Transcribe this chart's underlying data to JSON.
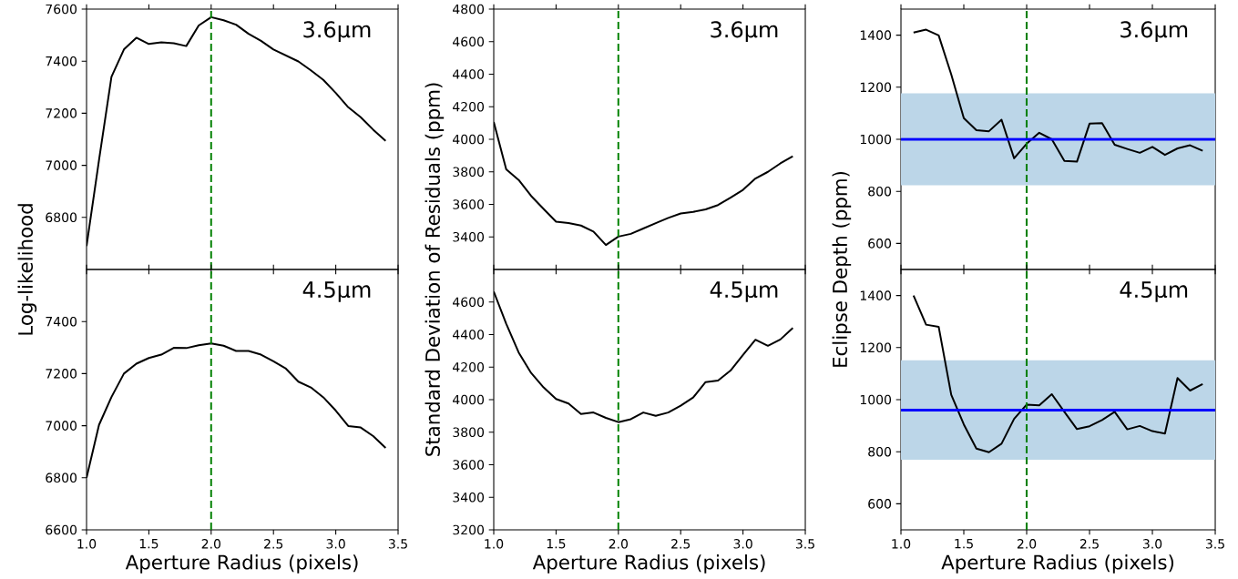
{
  "chart_data": [
    {
      "type": "line",
      "ylabel": "Log-likelihood",
      "tick_labels": "y",
      "x": [
        1.0,
        1.1,
        1.2,
        1.3,
        1.4,
        1.5,
        1.6,
        1.7,
        1.8,
        1.9,
        2.0,
        2.1,
        2.2,
        2.3,
        2.4,
        2.5,
        2.6,
        2.7,
        2.8,
        2.9,
        3.0,
        3.1,
        3.2,
        3.3,
        3.4
      ],
      "series": [
        {
          "color": "#000000",
          "values": [
            6690,
            7020,
            7340,
            7445,
            7490,
            7466,
            7472,
            7469,
            7458,
            7537,
            7569,
            7557,
            7540,
            7505,
            7478,
            7445,
            7422,
            7399,
            7365,
            7328,
            7278,
            7223,
            7185,
            7137,
            7094
          ]
        }
      ],
      "xlim": [
        1.0,
        3.5
      ],
      "xticks": [
        {
          "value": 1.0,
          "label": null
        },
        {
          "value": 1.5,
          "label": null
        },
        {
          "value": 2.0,
          "label": null
        },
        {
          "value": 2.5,
          "label": null
        },
        {
          "value": 3.0,
          "label": null
        },
        {
          "value": 3.5,
          "label": null
        }
      ],
      "ylim": [
        6600,
        7600
      ],
      "yticks": [
        6800,
        7000,
        7200,
        7400,
        7600
      ],
      "ref_lines": [
        {
          "axis": "x",
          "value": 2.0,
          "color": "#008000",
          "line_style": "dashed"
        }
      ],
      "annotations": [
        "3.6μm"
      ]
    },
    {
      "type": "line",
      "ylabel": "Standard Deviation of Residuals (ppm)",
      "tick_labels": "y",
      "x": [
        1.0,
        1.1,
        1.2,
        1.3,
        1.4,
        1.5,
        1.6,
        1.7,
        1.8,
        1.9,
        2.0,
        2.1,
        2.2,
        2.3,
        2.4,
        2.5,
        2.6,
        2.7,
        2.8,
        2.9,
        3.0,
        3.1,
        3.2,
        3.3,
        3.4
      ],
      "series": [
        {
          "color": "#000000",
          "values": [
            4106,
            3815,
            3750,
            3652,
            3572,
            3494,
            3485,
            3470,
            3433,
            3350,
            3402,
            3419,
            3452,
            3485,
            3517,
            3544,
            3554,
            3569,
            3596,
            3641,
            3689,
            3759,
            3800,
            3852,
            3896
          ]
        }
      ],
      "xlim": [
        1.0,
        3.5
      ],
      "xticks": [
        {
          "value": 1.0,
          "label": null
        },
        {
          "value": 1.5,
          "label": null
        },
        {
          "value": 2.0,
          "label": null
        },
        {
          "value": 2.5,
          "label": null
        },
        {
          "value": 3.0,
          "label": null
        },
        {
          "value": 3.5,
          "label": null
        }
      ],
      "ylim": [
        3200,
        4800
      ],
      "yticks": [
        3400,
        3600,
        3800,
        4000,
        4200,
        4400,
        4600,
        4800
      ],
      "ref_lines": [
        {
          "axis": "x",
          "value": 2.0,
          "color": "#008000",
          "line_style": "dashed"
        }
      ],
      "annotations": [
        "3.6μm"
      ]
    },
    {
      "type": "line",
      "ylabel": "Eclipse Depth (ppm)",
      "tick_labels": "y",
      "x": [
        1.1,
        1.2,
        1.3,
        1.4,
        1.5,
        1.6,
        1.7,
        1.8,
        1.9,
        2.0,
        2.1,
        2.2,
        2.3,
        2.4,
        2.5,
        2.6,
        2.7,
        2.8,
        2.9,
        3.0,
        3.1,
        3.2,
        3.3,
        3.4
      ],
      "series": [
        {
          "color": "#000000",
          "values": [
            1410,
            1421,
            1399,
            1249,
            1081,
            1035,
            1031,
            1075,
            927,
            983,
            1025,
            1000,
            917,
            914,
            1060,
            1062,
            979,
            963,
            948,
            971,
            940,
            965,
            977,
            956
          ]
        }
      ],
      "xlim": [
        1.0,
        3.5
      ],
      "xticks": [
        {
          "value": 1.0,
          "label": null
        },
        {
          "value": 1.5,
          "label": null
        },
        {
          "value": 2.0,
          "label": null
        },
        {
          "value": 2.5,
          "label": null
        },
        {
          "value": 3.0,
          "label": null
        },
        {
          "value": 3.5,
          "label": null
        }
      ],
      "ylim": [
        500,
        1500
      ],
      "yticks": [
        600,
        800,
        1000,
        1200,
        1400
      ],
      "bands": [
        {
          "axis": "y",
          "from": 823,
          "to": 1177,
          "color": "#bcd6e8"
        }
      ],
      "ref_lines": [
        {
          "axis": "x",
          "value": 2.0,
          "color": "#008000",
          "line_style": "dashed"
        },
        {
          "axis": "y",
          "value": 1000,
          "color": "#0000ff",
          "line_style": "solid"
        }
      ],
      "annotations": [
        "3.6μm"
      ]
    },
    {
      "type": "line",
      "xlabel": "Aperture Radius (pixels)",
      "x": [
        1.0,
        1.1,
        1.2,
        1.3,
        1.4,
        1.5,
        1.6,
        1.7,
        1.8,
        1.9,
        2.0,
        2.1,
        2.2,
        2.3,
        2.4,
        2.5,
        2.6,
        2.7,
        2.8,
        2.9,
        3.0,
        3.1,
        3.2,
        3.3,
        3.4
      ],
      "series": [
        {
          "color": "#000000",
          "values": [
            6800,
            7003,
            7110,
            7200,
            7238,
            7260,
            7273,
            7299,
            7298,
            7309,
            7316,
            7307,
            7287,
            7287,
            7273,
            7247,
            7219,
            7169,
            7147,
            7109,
            7058,
            6999,
            6993,
            6960,
            6915
          ]
        }
      ],
      "xlim": [
        1.0,
        3.5
      ],
      "xticks": [
        {
          "value": 1.0,
          "label": "1.0"
        },
        {
          "value": 1.5,
          "label": "1.5"
        },
        {
          "value": 2.0,
          "label": "2.0"
        },
        {
          "value": 2.5,
          "label": "2.5"
        },
        {
          "value": 3.0,
          "label": "3.0"
        },
        {
          "value": 3.5,
          "label": "3.5"
        }
      ],
      "ylim": [
        6600,
        7600
      ],
      "yticks": [
        6600,
        6800,
        7000,
        7200,
        7400
      ],
      "ref_lines": [
        {
          "axis": "x",
          "value": 2.0,
          "color": "#008000",
          "line_style": "dashed"
        }
      ],
      "annotations": [
        "4.5μm"
      ]
    },
    {
      "type": "line",
      "xlabel": "Aperture Radius (pixels)",
      "x": [
        1.0,
        1.1,
        1.2,
        1.3,
        1.4,
        1.5,
        1.6,
        1.7,
        1.8,
        1.9,
        2.0,
        2.1,
        2.2,
        2.3,
        2.4,
        2.5,
        2.6,
        2.7,
        2.8,
        2.9,
        3.0,
        3.1,
        3.2,
        3.3,
        3.4
      ],
      "series": [
        {
          "color": "#000000",
          "values": [
            4664,
            4467,
            4290,
            4164,
            4075,
            4004,
            3976,
            3912,
            3921,
            3888,
            3862,
            3880,
            3921,
            3901,
            3921,
            3963,
            4013,
            4108,
            4118,
            4179,
            4275,
            4368,
            4331,
            4370,
            4441
          ]
        }
      ],
      "xlim": [
        1.0,
        3.5
      ],
      "xticks": [
        {
          "value": 1.0,
          "label": "1.0"
        },
        {
          "value": 1.5,
          "label": "1.5"
        },
        {
          "value": 2.0,
          "label": "2.0"
        },
        {
          "value": 2.5,
          "label": "2.5"
        },
        {
          "value": 3.0,
          "label": "3.0"
        },
        {
          "value": 3.5,
          "label": "3.5"
        }
      ],
      "ylim": [
        3200,
        4800
      ],
      "yticks": [
        3200,
        3400,
        3600,
        3800,
        4000,
        4200,
        4400,
        4600
      ],
      "ref_lines": [
        {
          "axis": "x",
          "value": 2.0,
          "color": "#008000",
          "line_style": "dashed"
        }
      ],
      "annotations": [
        "4.5μm"
      ]
    },
    {
      "type": "line",
      "xlabel": "Aperture Radius (pixels)",
      "x": [
        1.1,
        1.2,
        1.3,
        1.4,
        1.5,
        1.6,
        1.7,
        1.8,
        1.9,
        2.0,
        2.1,
        2.2,
        2.3,
        2.4,
        2.5,
        2.6,
        2.7,
        2.8,
        2.9,
        3.0,
        3.1,
        3.2,
        3.3,
        3.4
      ],
      "series": [
        {
          "color": "#000000",
          "values": [
            1400,
            1288,
            1280,
            1019,
            905,
            812,
            798,
            831,
            926,
            981,
            978,
            1021,
            953,
            887,
            898,
            922,
            953,
            886,
            899,
            879,
            870,
            1083,
            1035,
            1060
          ]
        }
      ],
      "xlim": [
        1.0,
        3.5
      ],
      "xticks": [
        {
          "value": 1.0,
          "label": "1.0"
        },
        {
          "value": 1.5,
          "label": "1.5"
        },
        {
          "value": 2.0,
          "label": "2.0"
        },
        {
          "value": 2.5,
          "label": "2.5"
        },
        {
          "value": 3.0,
          "label": "3.0"
        },
        {
          "value": 3.5,
          "label": "3.5"
        }
      ],
      "ylim": [
        500,
        1500
      ],
      "yticks": [
        600,
        800,
        1000,
        1200,
        1400
      ],
      "bands": [
        {
          "axis": "y",
          "from": 769,
          "to": 1151,
          "color": "#bcd6e8"
        }
      ],
      "ref_lines": [
        {
          "axis": "x",
          "value": 2.0,
          "color": "#008000",
          "line_style": "dashed"
        },
        {
          "axis": "y",
          "value": 960,
          "color": "#0000ff",
          "line_style": "solid"
        }
      ],
      "annotations": [
        "4.5μm"
      ]
    }
  ]
}
